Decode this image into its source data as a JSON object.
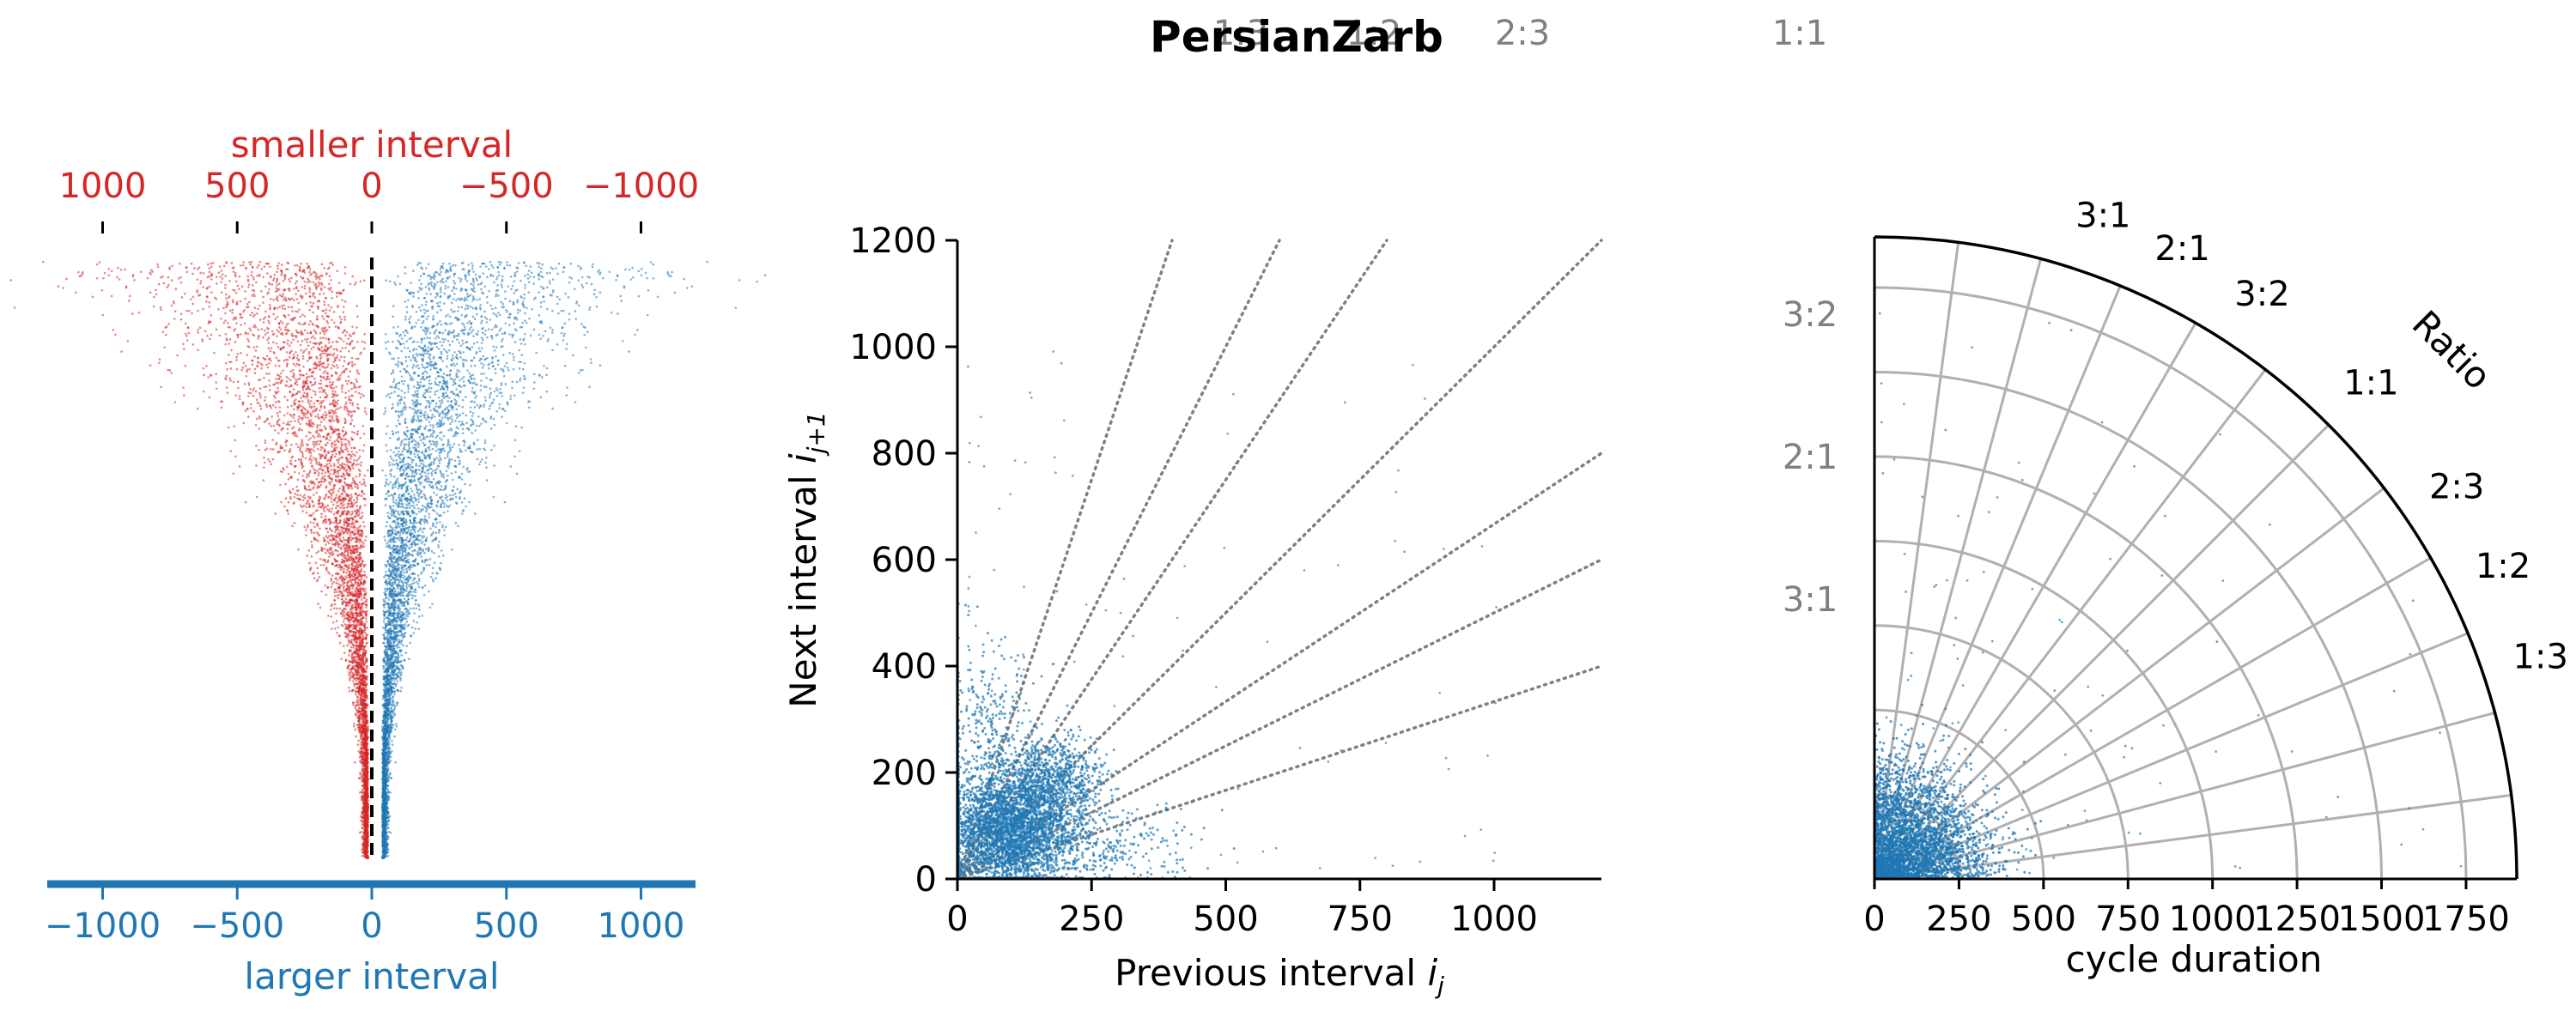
{
  "title": "PersianZarb",
  "top_stray_labels": [
    "1:3",
    "1:2",
    "2:3",
    "1:1"
  ],
  "colors": {
    "red": "#d62728",
    "blue": "#1f77b4",
    "gray": "#808080",
    "grid": "#b0b0b0"
  },
  "chart_data": [
    {
      "type": "scatter",
      "panel": "interval-difference-ribbons",
      "top_xlabel": "smaller interval",
      "top_xticks": [
        "1000",
        "500",
        "0",
        "−500",
        "−1000"
      ],
      "bottom_xlabel": "larger interval",
      "bottom_xticks": [
        "−1000",
        "−500",
        "0",
        "500",
        "1000"
      ],
      "xlim": [
        -1200,
        1200
      ],
      "zero_line": "dashed",
      "series": [
        {
          "color": "#d62728",
          "side": "smaller",
          "values_near_top": [
            -340,
            0
          ],
          "values_near_bottom": [
            -50,
            -10
          ]
        },
        {
          "color": "#1f77b4",
          "side": "larger",
          "values_near_top": [
            0,
            360
          ],
          "values_near_bottom": [
            10,
            50
          ]
        }
      ]
    },
    {
      "type": "scatter",
      "panel": "return-map",
      "xlabel": "Previous interval ",
      "xlabel_var": "i",
      "xlabel_sub": "j",
      "ylabel": "Next interval ",
      "ylabel_var": "i",
      "ylabel_sub": "j+1",
      "xlim": [
        0,
        1200
      ],
      "ylim": [
        0,
        1200
      ],
      "xticks": [
        "0",
        "250",
        "500",
        "750",
        "1000"
      ],
      "yticks": [
        "0",
        "200",
        "400",
        "600",
        "800",
        "1000",
        "1200"
      ],
      "ratio_lines": [
        3,
        2,
        1.5,
        1,
        0.6667,
        0.5,
        0.3333
      ],
      "clusters": [
        {
          "center": [
            90,
            90
          ],
          "spread": [
            60,
            55
          ],
          "points": 3200
        },
        {
          "center": [
            180,
            180
          ],
          "spread": [
            45,
            45
          ],
          "points": 900
        },
        {
          "center": [
            60,
            260
          ],
          "spread": [
            40,
            90
          ],
          "points": 350
        },
        {
          "center": [
            270,
            60
          ],
          "spread": [
            90,
            40
          ],
          "points": 300
        }
      ]
    },
    {
      "type": "scatter",
      "panel": "polar-ratio",
      "xlabel": "cycle duration",
      "xticks": [
        "0",
        "250",
        "500",
        "750",
        "1000",
        "1250",
        "1500",
        "1750"
      ],
      "rlim": [
        0,
        1900
      ],
      "angle_label": "Ratio",
      "ratio_labels": [
        "3:1",
        "2:1",
        "3:2",
        "1:1",
        "2:3",
        "1:2",
        "1:3"
      ],
      "ratio_values": [
        3,
        2,
        1.5,
        1,
        0.6667,
        0.5,
        0.3333
      ],
      "left_labels": [
        "3:2",
        "2:1",
        "3:1"
      ],
      "radial_lines": 12,
      "rings": [
        250,
        500,
        750,
        1000,
        1250,
        1500,
        1750
      ],
      "clusters": [
        {
          "r_center": 170,
          "r_spread": 110,
          "points": 3500
        }
      ]
    }
  ]
}
